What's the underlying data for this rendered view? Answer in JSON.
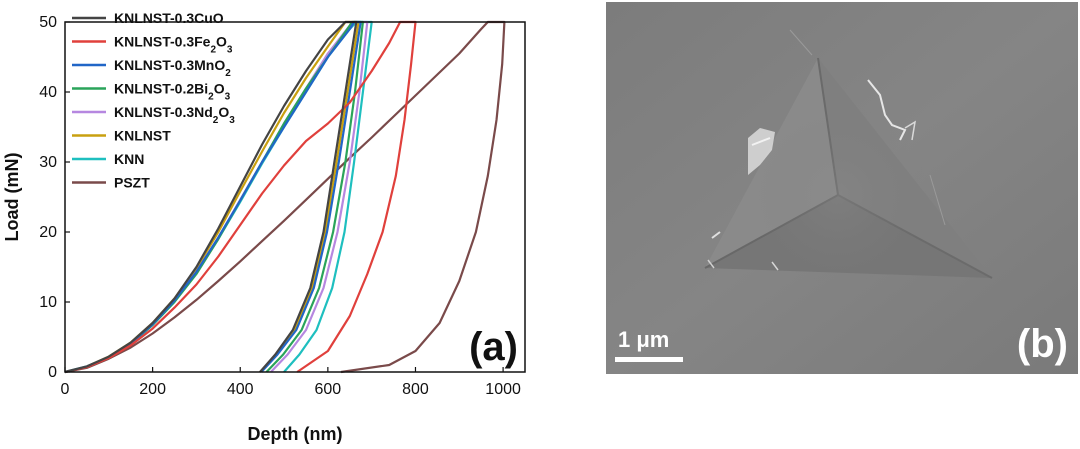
{
  "chart_data": {
    "type": "line",
    "panel_label": "(a)",
    "xlabel": "Depth (nm)",
    "ylabel": "Load (mN)",
    "xlim": [
      0,
      1050
    ],
    "ylim": [
      0,
      50
    ],
    "xticks": [
      0,
      200,
      400,
      600,
      800,
      1000
    ],
    "yticks": [
      0,
      10,
      20,
      30,
      40,
      50
    ],
    "legend_position": "top-left",
    "series": [
      {
        "name": "KNLNST-0.3CuO",
        "label_base": "KNLNST-0.3CuO",
        "label_sub": "",
        "label_suffix": "",
        "color": "#444444",
        "loading": [
          [
            0,
            0
          ],
          [
            50,
            0.8
          ],
          [
            100,
            2.2
          ],
          [
            150,
            4.2
          ],
          [
            200,
            7
          ],
          [
            250,
            10.5
          ],
          [
            300,
            15
          ],
          [
            350,
            20.5
          ],
          [
            400,
            26.5
          ],
          [
            450,
            32.5
          ],
          [
            500,
            38
          ],
          [
            550,
            43
          ],
          [
            600,
            47.5
          ],
          [
            640,
            50
          ]
        ],
        "hold": [
          [
            640,
            50
          ],
          [
            665,
            50
          ]
        ],
        "unloading": [
          [
            665,
            50
          ],
          [
            640,
            40
          ],
          [
            615,
            30
          ],
          [
            590,
            20
          ],
          [
            560,
            12
          ],
          [
            520,
            6
          ],
          [
            480,
            2.5
          ],
          [
            445,
            0
          ]
        ]
      },
      {
        "name": "KNLNST-0.3Fe2O3",
        "label_base": "KNLNST-0.3Fe",
        "label_sub": "2",
        "label_suffix": "O3",
        "color": "#e0403c",
        "loading": [
          [
            0,
            0
          ],
          [
            50,
            0.7
          ],
          [
            100,
            2
          ],
          [
            150,
            3.8
          ],
          [
            200,
            6.2
          ],
          [
            250,
            9.2
          ],
          [
            300,
            12.5
          ],
          [
            350,
            16.5
          ],
          [
            400,
            21
          ],
          [
            450,
            25.5
          ],
          [
            500,
            29.5
          ],
          [
            550,
            33
          ],
          [
            600,
            35.5
          ],
          [
            650,
            38.5
          ],
          [
            700,
            43
          ],
          [
            740,
            47
          ],
          [
            765,
            50
          ]
        ],
        "hold": [
          [
            765,
            50
          ],
          [
            800,
            50
          ]
        ],
        "unloading": [
          [
            800,
            50
          ],
          [
            790,
            44
          ],
          [
            775,
            36
          ],
          [
            755,
            28
          ],
          [
            725,
            20
          ],
          [
            690,
            14
          ],
          [
            650,
            8
          ],
          [
            600,
            3
          ],
          [
            530,
            0
          ]
        ]
      },
      {
        "name": "KNLNST-0.3MnO2",
        "label_base": "KNLNST-0.3MnO",
        "label_sub": "2",
        "label_suffix": "",
        "color": "#2166c7",
        "loading": [
          [
            0,
            0
          ],
          [
            50,
            0.8
          ],
          [
            100,
            2.1
          ],
          [
            150,
            4.1
          ],
          [
            200,
            6.8
          ],
          [
            250,
            10.2
          ],
          [
            300,
            14.3
          ],
          [
            350,
            19.2
          ],
          [
            400,
            24.5
          ],
          [
            450,
            30
          ],
          [
            500,
            35
          ],
          [
            550,
            40
          ],
          [
            600,
            45
          ],
          [
            650,
            49
          ],
          [
            660,
            50
          ]
        ],
        "hold": [
          [
            660,
            50
          ],
          [
            675,
            50
          ]
        ],
        "unloading": [
          [
            675,
            50
          ],
          [
            650,
            40
          ],
          [
            625,
            30
          ],
          [
            598,
            20
          ],
          [
            568,
            12
          ],
          [
            528,
            6
          ],
          [
            485,
            2.5
          ],
          [
            448,
            0
          ]
        ]
      },
      {
        "name": "KNLNST-0.2Bi2O3",
        "label_base": "KNLNST-0.2Bi",
        "label_sub": "2",
        "label_suffix": "O3",
        "color": "#2aa45a",
        "loading": [
          [
            0,
            0
          ],
          [
            50,
            0.8
          ],
          [
            100,
            2.1
          ],
          [
            150,
            4
          ],
          [
            200,
            6.7
          ],
          [
            250,
            10
          ],
          [
            300,
            14
          ],
          [
            350,
            19
          ],
          [
            400,
            24.5
          ],
          [
            450,
            30
          ],
          [
            500,
            35.5
          ],
          [
            550,
            40.5
          ],
          [
            600,
            45
          ],
          [
            650,
            49.5
          ],
          [
            655,
            50
          ]
        ],
        "hold": [
          [
            655,
            50
          ],
          [
            680,
            50
          ]
        ],
        "unloading": [
          [
            680,
            50
          ],
          [
            662,
            40
          ],
          [
            640,
            30
          ],
          [
            612,
            20
          ],
          [
            580,
            12
          ],
          [
            540,
            6
          ],
          [
            498,
            2.5
          ],
          [
            460,
            0
          ]
        ]
      },
      {
        "name": "KNLNST-0.3Nd2O3",
        "label_base": "KNLNST-0.3Nd",
        "label_sub": "2",
        "label_suffix": "O3",
        "color": "#b687e0",
        "loading": [
          [
            0,
            0
          ],
          [
            50,
            0.8
          ],
          [
            100,
            2.1
          ],
          [
            150,
            4.1
          ],
          [
            200,
            6.8
          ],
          [
            250,
            10.2
          ],
          [
            300,
            14.3
          ],
          [
            350,
            19.2
          ],
          [
            400,
            24.6
          ],
          [
            450,
            30
          ],
          [
            500,
            35.5
          ],
          [
            550,
            40.5
          ],
          [
            600,
            45.5
          ],
          [
            650,
            49.5
          ],
          [
            658,
            50
          ]
        ],
        "hold": [
          [
            658,
            50
          ],
          [
            690,
            50
          ]
        ],
        "unloading": [
          [
            690,
            50
          ],
          [
            672,
            40
          ],
          [
            650,
            30
          ],
          [
            622,
            20
          ],
          [
            590,
            12
          ],
          [
            550,
            6
          ],
          [
            508,
            2.5
          ],
          [
            470,
            0
          ]
        ]
      },
      {
        "name": "KNLNST",
        "label_base": "KNLNST",
        "label_sub": "",
        "label_suffix": "",
        "color": "#c9a010",
        "loading": [
          [
            0,
            0
          ],
          [
            50,
            0.8
          ],
          [
            100,
            2.2
          ],
          [
            150,
            4.2
          ],
          [
            200,
            7
          ],
          [
            250,
            10.5
          ],
          [
            300,
            14.8
          ],
          [
            350,
            20
          ],
          [
            400,
            25.8
          ],
          [
            450,
            31.5
          ],
          [
            500,
            37
          ],
          [
            550,
            42
          ],
          [
            600,
            46.5
          ],
          [
            640,
            50
          ]
        ],
        "hold": [
          [
            640,
            50
          ],
          [
            670,
            50
          ]
        ],
        "unloading": [
          [
            670,
            50
          ],
          [
            645,
            40
          ],
          [
            620,
            30
          ],
          [
            594,
            20
          ],
          [
            564,
            12
          ],
          [
            524,
            6
          ],
          [
            482,
            2.5
          ],
          [
            445,
            0
          ]
        ]
      },
      {
        "name": "KNN",
        "label_base": "KNN",
        "label_sub": "",
        "label_suffix": "",
        "color": "#1ebfbf",
        "loading": [
          [
            0,
            0
          ],
          [
            50,
            0.8
          ],
          [
            100,
            2.1
          ],
          [
            150,
            4.1
          ],
          [
            200,
            6.8
          ],
          [
            250,
            10.2
          ],
          [
            300,
            14.2
          ],
          [
            350,
            19
          ],
          [
            400,
            24.3
          ],
          [
            450,
            29.8
          ],
          [
            500,
            35
          ],
          [
            550,
            40
          ],
          [
            600,
            45
          ],
          [
            650,
            49
          ],
          [
            665,
            50
          ]
        ],
        "hold": [
          [
            665,
            50
          ],
          [
            700,
            50
          ]
        ],
        "unloading": [
          [
            700,
            50
          ],
          [
            680,
            40
          ],
          [
            660,
            30
          ],
          [
            638,
            20
          ],
          [
            610,
            12
          ],
          [
            574,
            6
          ],
          [
            535,
            2.5
          ],
          [
            500,
            0
          ]
        ]
      },
      {
        "name": "PSZT",
        "label_base": "PSZT",
        "label_sub": "",
        "label_suffix": "",
        "color": "#7a4a4a",
        "loading": [
          [
            0,
            0
          ],
          [
            50,
            0.6
          ],
          [
            100,
            1.9
          ],
          [
            150,
            3.5
          ],
          [
            200,
            5.5
          ],
          [
            250,
            7.8
          ],
          [
            300,
            10.3
          ],
          [
            350,
            13
          ],
          [
            400,
            15.8
          ],
          [
            450,
            18.7
          ],
          [
            500,
            21.6
          ],
          [
            550,
            24.6
          ],
          [
            600,
            27.6
          ],
          [
            650,
            30.6
          ],
          [
            700,
            33.5
          ],
          [
            750,
            36.5
          ],
          [
            800,
            39.5
          ],
          [
            850,
            42.5
          ],
          [
            900,
            45.5
          ],
          [
            950,
            49
          ],
          [
            965,
            50
          ]
        ],
        "hold": [
          [
            965,
            50
          ],
          [
            1003,
            50
          ]
        ],
        "unloading": [
          [
            1003,
            50
          ],
          [
            998,
            44
          ],
          [
            985,
            36
          ],
          [
            965,
            28
          ],
          [
            938,
            20
          ],
          [
            900,
            13
          ],
          [
            855,
            7
          ],
          [
            800,
            3
          ],
          [
            740,
            1
          ],
          [
            630,
            0
          ]
        ]
      }
    ]
  },
  "sem": {
    "panel_label": "(b)",
    "scale_label": "1 μm"
  }
}
